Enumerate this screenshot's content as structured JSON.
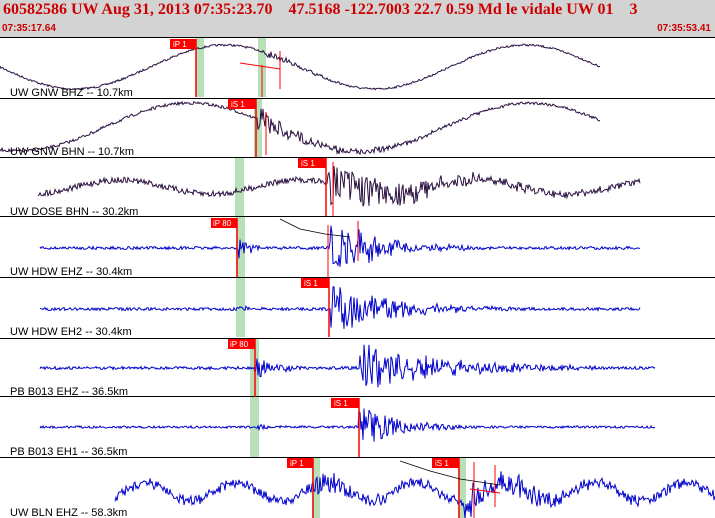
{
  "header": {
    "title": "60582586 UW Aug 31, 2013 07:35:23.70    47.5168 -122.7003 22.7 0.59 Md le vidale UW 01    3",
    "start_time": "07:35:17.64",
    "end_time": "07:35:53.41"
  },
  "colors": {
    "header_bg": "#d3d3d3",
    "header_text": "#cc0000",
    "trace_dark": "#2a1040",
    "trace_blue": "#0000cc",
    "pick": "#ff0000",
    "window": "#b8e0b8"
  },
  "traces": [
    {
      "label": "UW GNW BHZ -- 10.7km",
      "pick": "iP 1",
      "style": "dark"
    },
    {
      "label": "UW GNW BHN -- 10.7km",
      "pick": "iS 1",
      "style": "dark"
    },
    {
      "label": "UW DOSE BHN -- 30.2km",
      "pick": "iS 1",
      "style": "dark"
    },
    {
      "label": "UW HDW EHZ -- 30.4km",
      "pick": "iP 80",
      "style": "blue"
    },
    {
      "label": "UW HDW EH2 -- 30.4km",
      "pick": "iS 1",
      "style": "blue"
    },
    {
      "label": "PB B013 EHZ -- 36.5km",
      "pick": "iP 80",
      "style": "blue"
    },
    {
      "label": "PB B013 EH1 -- 36.5km",
      "pick": "iS 1",
      "style": "blue"
    },
    {
      "label": "UW BLN EHZ -- 58.3km",
      "picks": [
        "iP 1",
        "iS 1"
      ],
      "style": "blue"
    }
  ]
}
